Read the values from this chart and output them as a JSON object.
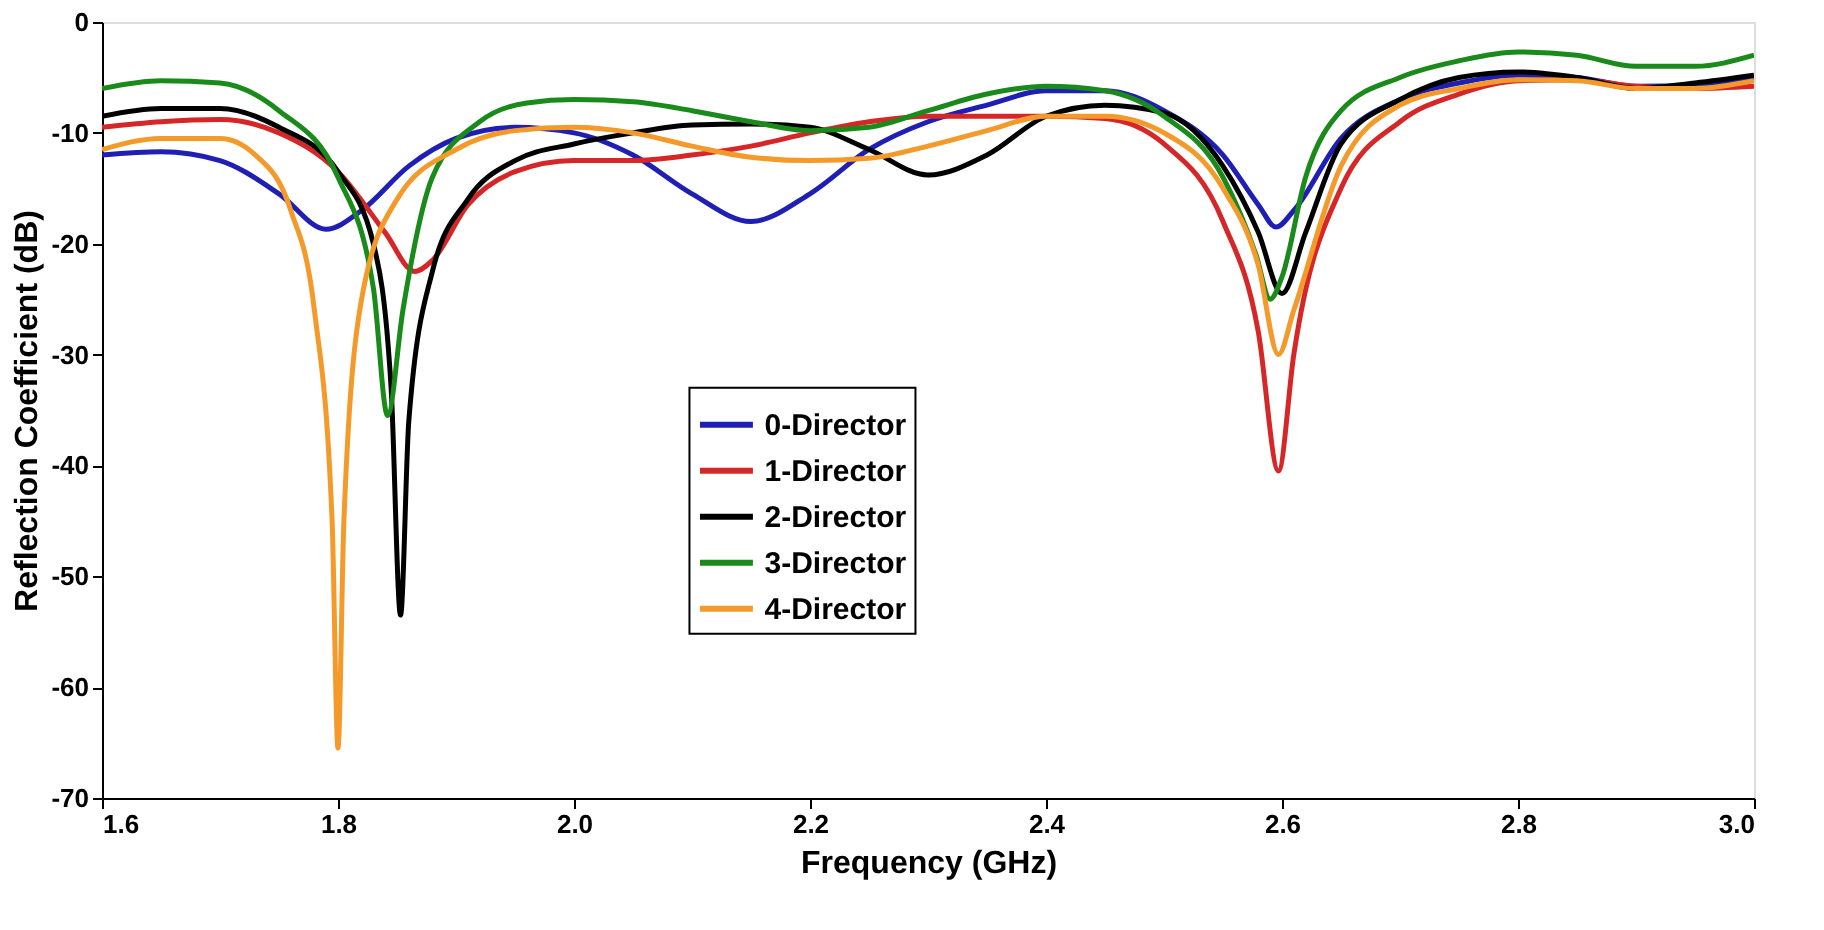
{
  "chart_data": {
    "type": "line",
    "xlabel": "Frequency (GHz)",
    "ylabel": "Reflection Coefficient (dB)",
    "xlim": [
      1.6,
      3.0
    ],
    "ylim": [
      -70,
      0
    ],
    "xticks": [
      {
        "value": 1.6,
        "label": "1.6"
      },
      {
        "value": 1.8,
        "label": "1.8"
      },
      {
        "value": 2.0,
        "label": "2.0"
      },
      {
        "value": 2.2,
        "label": "2.2"
      },
      {
        "value": 2.4,
        "label": "2.4"
      },
      {
        "value": 2.6,
        "label": "2.6"
      },
      {
        "value": 2.8,
        "label": "2.8"
      },
      {
        "value": 3.0,
        "label": "3.0"
      }
    ],
    "yticks": [
      -70,
      -60,
      -50,
      -40,
      -30,
      -20,
      -10,
      0
    ],
    "grid": false,
    "legend": "center",
    "line_style": "solid",
    "marker": "none",
    "series": [
      {
        "name": "0-Director",
        "color": "#1f1fb4",
        "x": [
          1.6,
          1.65,
          1.7,
          1.75,
          1.79,
          1.82,
          1.86,
          1.9,
          1.95,
          2.0,
          2.05,
          2.1,
          2.15,
          2.2,
          2.25,
          2.3,
          2.35,
          2.4,
          2.45,
          2.5,
          2.55,
          2.58,
          2.595,
          2.61,
          2.65,
          2.7,
          2.75,
          2.8,
          2.85,
          2.9,
          2.95,
          3.0
        ],
        "values": [
          -12,
          -11.7,
          -12.5,
          -15.5,
          -18.7,
          -17,
          -13,
          -10.5,
          -9.5,
          -10,
          -12,
          -15.5,
          -18,
          -15.5,
          -11.5,
          -9,
          -7.5,
          -6.2,
          -6.2,
          -8,
          -12,
          -16.5,
          -18.5,
          -17,
          -10.5,
          -7,
          -5.5,
          -4.8,
          -5,
          -5.8,
          -5.7,
          -5
        ]
      },
      {
        "name": "1-Director",
        "color": "#d62728",
        "x": [
          1.6,
          1.65,
          1.7,
          1.75,
          1.8,
          1.84,
          1.865,
          1.88,
          1.91,
          1.95,
          2.0,
          2.05,
          2.1,
          2.15,
          2.2,
          2.25,
          2.3,
          2.35,
          2.4,
          2.45,
          2.5,
          2.55,
          2.58,
          2.597,
          2.61,
          2.65,
          2.7,
          2.75,
          2.8,
          2.85,
          2.9,
          2.95,
          3.0
        ],
        "values": [
          -9.5,
          -9,
          -8.8,
          -10,
          -13.5,
          -19,
          -22.5,
          -21.5,
          -16.5,
          -13.5,
          -12.5,
          -12.5,
          -12,
          -11.2,
          -10,
          -9,
          -8.5,
          -8.5,
          -8.5,
          -8.7,
          -11,
          -18,
          -28,
          -40.5,
          -30,
          -15,
          -9,
          -6.5,
          -5.3,
          -5.2,
          -5.8,
          -6,
          -5.8
        ]
      },
      {
        "name": "2-Director",
        "color": "#000000",
        "x": [
          1.6,
          1.65,
          1.7,
          1.75,
          1.8,
          1.83,
          1.845,
          1.853,
          1.86,
          1.88,
          1.91,
          1.95,
          2.0,
          2.05,
          2.1,
          2.15,
          2.2,
          2.25,
          2.3,
          2.35,
          2.4,
          2.45,
          2.5,
          2.55,
          2.58,
          2.6,
          2.62,
          2.65,
          2.7,
          2.75,
          2.8,
          2.85,
          2.9,
          2.95,
          3.0
        ],
        "values": [
          -8.5,
          -7.8,
          -7.8,
          -9.5,
          -13.5,
          -20,
          -33,
          -53.5,
          -36,
          -22.5,
          -16,
          -12.5,
          -11,
          -10,
          -9.3,
          -9.2,
          -9.5,
          -11.5,
          -13.8,
          -12,
          -8.5,
          -7.5,
          -8.2,
          -13,
          -19,
          -24.5,
          -19,
          -11,
          -7,
          -5,
          -4.5,
          -5,
          -6,
          -5.5,
          -4.8
        ]
      },
      {
        "name": "3-Director",
        "color": "#1a8a1a",
        "x": [
          1.6,
          1.65,
          1.7,
          1.75,
          1.8,
          1.83,
          1.842,
          1.855,
          1.88,
          1.92,
          1.96,
          2.0,
          2.05,
          2.1,
          2.15,
          2.2,
          2.25,
          2.3,
          2.35,
          2.4,
          2.45,
          2.5,
          2.55,
          2.578,
          2.59,
          2.6,
          2.62,
          2.65,
          2.7,
          2.75,
          2.8,
          2.85,
          2.9,
          2.95,
          3.0
        ],
        "values": [
          -6,
          -5.3,
          -5.5,
          -8,
          -14,
          -24,
          -35.5,
          -26,
          -14,
          -9,
          -7.3,
          -7,
          -7.2,
          -8,
          -9,
          -9.8,
          -9.5,
          -8,
          -6.5,
          -5.8,
          -6.2,
          -8.5,
          -14,
          -21,
          -25,
          -23,
          -14,
          -8,
          -5,
          -3.5,
          -2.7,
          -3,
          -4,
          -4,
          -3
        ]
      },
      {
        "name": "4-Director",
        "color": "#f39a2b",
        "x": [
          1.6,
          1.65,
          1.7,
          1.73,
          1.76,
          1.78,
          1.795,
          1.8,
          1.805,
          1.82,
          1.85,
          1.9,
          1.95,
          2.0,
          2.05,
          2.1,
          2.15,
          2.2,
          2.25,
          2.3,
          2.35,
          2.4,
          2.45,
          2.5,
          2.55,
          2.58,
          2.597,
          2.61,
          2.65,
          2.7,
          2.75,
          2.8,
          2.85,
          2.9,
          2.95,
          3.0
        ],
        "values": [
          -11.5,
          -10.5,
          -10.5,
          -12,
          -17,
          -26,
          -45,
          -65.5,
          -45,
          -25,
          -16,
          -11.5,
          -9.8,
          -9.5,
          -10,
          -11.2,
          -12.2,
          -12.5,
          -12.3,
          -11.2,
          -9.8,
          -8.5,
          -8.5,
          -10,
          -15,
          -22,
          -30,
          -26,
          -13,
          -7.5,
          -6,
          -5.2,
          -5.3,
          -6,
          -6,
          -5.3
        ]
      }
    ]
  }
}
